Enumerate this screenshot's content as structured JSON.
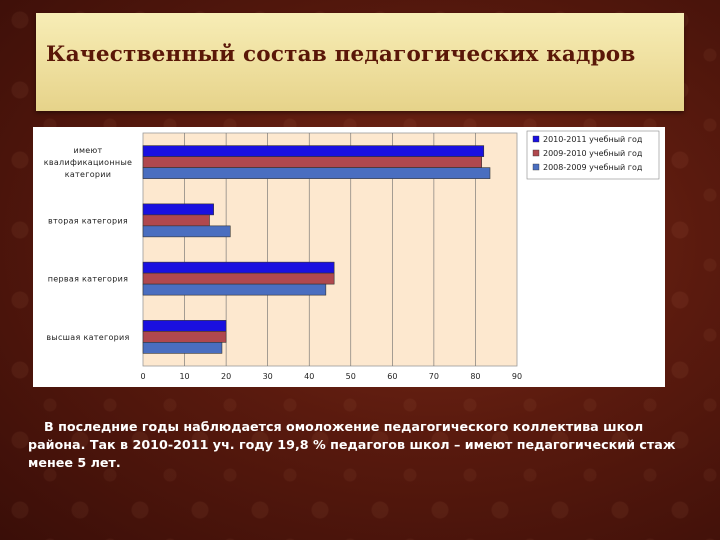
{
  "title": "Качественный состав педагогических кадров",
  "caption": "В последние годы наблюдается омоложение педагогического коллектива школ района.  Так в 2010-2011 уч. году  19,8 % педагогов школ – имеют педагогический стаж менее 5 лет.",
  "colors": {
    "series_2010_2011": "#1a10e0",
    "series_2009_2010": "#b0484e",
    "series_2008_2009": "#4a6ec0",
    "plot_area": "#fde8cf"
  },
  "chart_data": {
    "type": "bar",
    "orientation": "horizontal",
    "categories": [
      [
        "имеют",
        "квалификационные",
        "категории"
      ],
      [
        "вторая категория"
      ],
      [
        "первая категория"
      ],
      [
        "высшая категория"
      ]
    ],
    "series": [
      {
        "name": "2010-2011 учебный год",
        "values": [
          82,
          17,
          46,
          20
        ]
      },
      {
        "name": "2009-2010 учебный год",
        "values": [
          81.5,
          16,
          46,
          20
        ]
      },
      {
        "name": "2008-2009 учебный год",
        "values": [
          83.5,
          21,
          44,
          19
        ]
      }
    ],
    "xlim": [
      0,
      90
    ],
    "xticks": [
      "0",
      "10",
      "20",
      "30",
      "40",
      "50",
      "60",
      "70",
      "80",
      "90"
    ],
    "grid": true,
    "legend": "top-right"
  }
}
